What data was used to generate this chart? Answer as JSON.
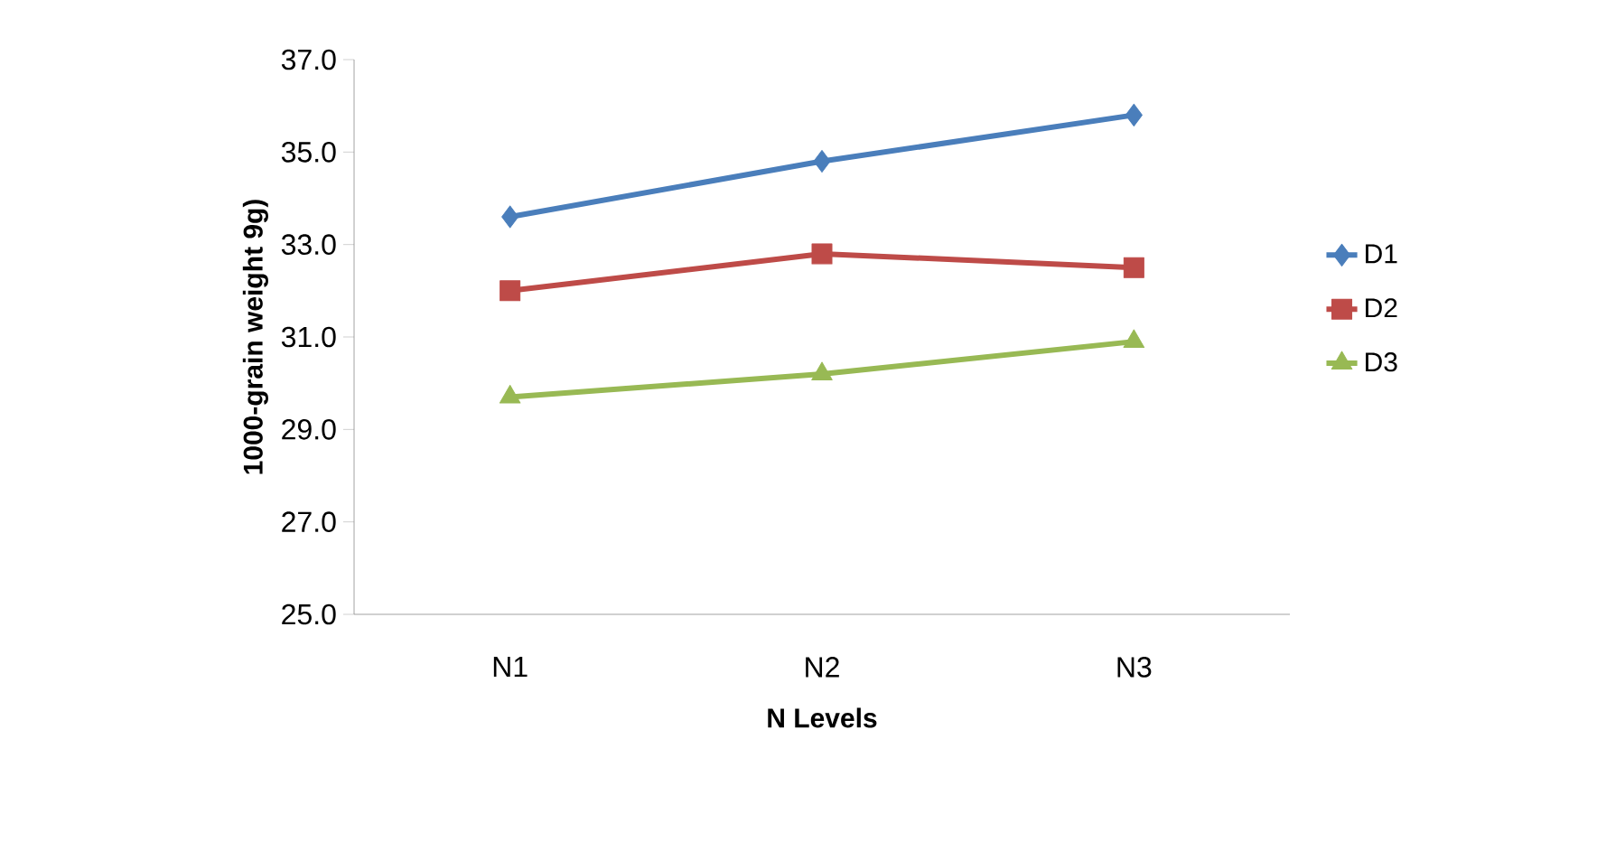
{
  "chart_data": {
    "type": "line",
    "xlabel": "N Levels",
    "ylabel": "1000-grain weight 9g)",
    "categories": [
      "N1",
      "N2",
      "N3"
    ],
    "series": [
      {
        "name": "D1",
        "color": "#4a7ebb",
        "marker": "diamond",
        "values": [
          33.6,
          34.8,
          35.8
        ]
      },
      {
        "name": "D2",
        "color": "#be4b48",
        "marker": "square",
        "values": [
          32.0,
          32.8,
          32.5
        ]
      },
      {
        "name": "D3",
        "color": "#98b954",
        "marker": "triangle",
        "values": [
          29.7,
          30.2,
          30.9
        ]
      }
    ],
    "ylim": [
      25,
      37
    ],
    "yticks": [
      {
        "value": 25,
        "label": "25.0"
      },
      {
        "value": 27,
        "label": "27.0"
      },
      {
        "value": 29,
        "label": "29.0"
      },
      {
        "value": 31,
        "label": "31.0"
      },
      {
        "value": 33,
        "label": "33.0"
      },
      {
        "value": 35,
        "label": "35.0"
      },
      {
        "value": 37,
        "label": "37.0"
      }
    ],
    "legend": "right",
    "grid": false
  }
}
